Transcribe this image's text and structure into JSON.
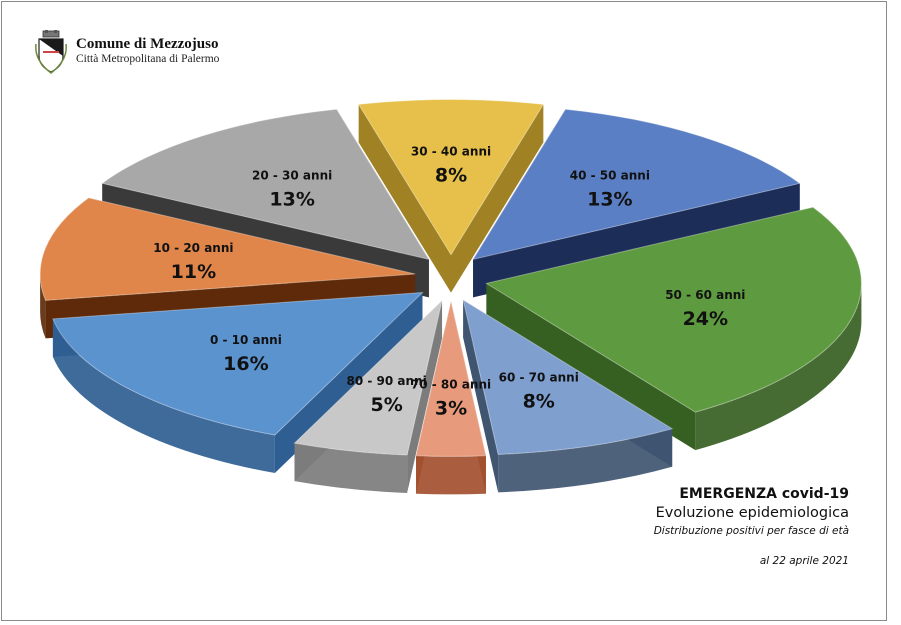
{
  "header": {
    "org_name": "Comune di Mezzojuso",
    "org_sub": "Città Metropolitana di Palermo",
    "crest_icon": "coat-of-arms-icon"
  },
  "info": {
    "title": "EMERGENZA covid-19",
    "subtitle": "Evoluzione epidemiologica",
    "description": "Distribuzione positivi per fasce di età",
    "date": "al 22 aprile 2021"
  },
  "chart_data": {
    "type": "pie",
    "style": "3d-exploded",
    "title": "",
    "categories": [
      "30 - 40 anni",
      "40 - 50 anni",
      "50 - 60 anni",
      "60 - 70 anni",
      "70 - 80 anni",
      "80 - 90 anni",
      "0 - 10 anni",
      "10 - 20 anni",
      "20 - 30 anni"
    ],
    "values": [
      8,
      13,
      24,
      8,
      3,
      5,
      16,
      11,
      13
    ],
    "labels": [
      "8%",
      "13%",
      "24%",
      "8%",
      "3%",
      "5%",
      "16%",
      "11%",
      "13%"
    ],
    "colors": [
      "#e6c04a",
      "#5b7fc4",
      "#5e9a3f",
      "#7f9fcf",
      "#e89a7c",
      "#c8c8c8",
      "#5b93cf",
      "#e0864a",
      "#a8a8a8"
    ],
    "side_colors": [
      "#a08124",
      "#1c2d58",
      "#365f22",
      "#3f5570",
      "#a3502f",
      "#7c7c7c",
      "#2f5e92",
      "#5e2a0a",
      "#3a3a3a"
    ],
    "legend": "none"
  }
}
